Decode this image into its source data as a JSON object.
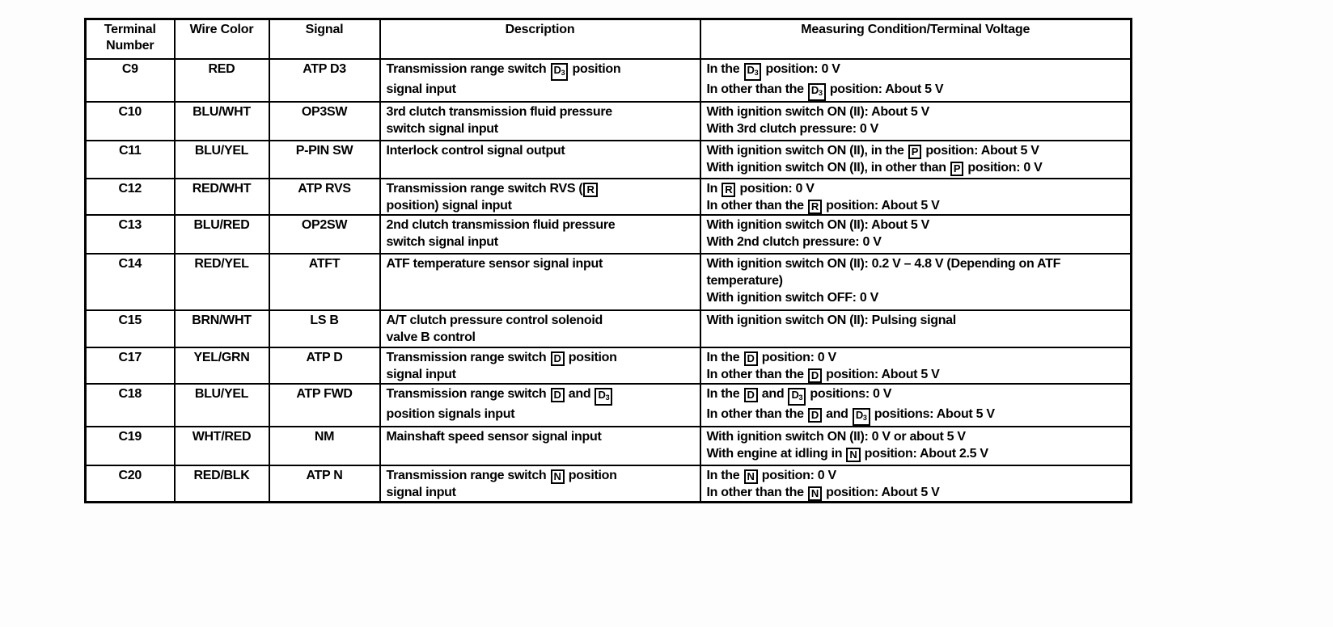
{
  "colors": {
    "page_background": "#fdfdfd",
    "table_background": "#ffffff",
    "border": "#000000",
    "text": "#000000"
  },
  "table": {
    "columns": [
      {
        "key": "terminal",
        "label": "Terminal Number"
      },
      {
        "key": "wire",
        "label": "Wire Color"
      },
      {
        "key": "signal",
        "label": "Signal"
      },
      {
        "key": "description",
        "label": "Description"
      },
      {
        "key": "voltage",
        "label": "Measuring Condition/Terminal Voltage"
      }
    ],
    "rows": [
      {
        "terminal": "C9",
        "wire": "RED",
        "signal": "ATP D3",
        "description": [
          "Transmission range switch [D3] position",
          "signal input"
        ],
        "voltage": [
          "In the [D3] position: 0 V",
          "In other than the [D3] position: About 5 V"
        ]
      },
      {
        "terminal": "C10",
        "wire": "BLU/WHT",
        "signal": "OP3SW",
        "description": [
          "3rd clutch transmission fluid pressure",
          "switch signal input"
        ],
        "voltage": [
          "With ignition switch ON (II): About 5 V",
          "With 3rd clutch pressure: 0 V"
        ]
      },
      {
        "terminal": "C11",
        "wire": "BLU/YEL",
        "signal": "P-PIN SW",
        "description": [
          "Interlock control signal output"
        ],
        "voltage": [
          "With ignition switch ON (II), in the [P] position: About 5 V",
          "With ignition switch ON (II), in other than [P] position: 0 V"
        ]
      },
      {
        "terminal": "C12",
        "wire": "RED/WHT",
        "signal": "ATP RVS",
        "description": [
          "Transmission range switch RVS ([R]",
          "position) signal input"
        ],
        "voltage": [
          "In [R] position: 0 V",
          "In other than the [R] position: About 5 V"
        ]
      },
      {
        "terminal": "C13",
        "wire": "BLU/RED",
        "signal": "OP2SW",
        "description": [
          "2nd clutch transmission fluid pressure",
          "switch signal input"
        ],
        "voltage": [
          "With ignition switch ON (II): About 5 V",
          "With 2nd clutch pressure: 0 V"
        ]
      },
      {
        "terminal": "C14",
        "wire": "RED/YEL",
        "signal": "ATFT",
        "description": [
          "ATF temperature sensor signal input"
        ],
        "voltage": [
          "With ignition switch ON (II): 0.2 V – 4.8 V (Depending on ATF",
          "temperature)",
          "With ignition switch OFF: 0 V"
        ]
      },
      {
        "terminal": "C15",
        "wire": "BRN/WHT",
        "signal": "LS B",
        "description": [
          "A/T clutch pressure control solenoid",
          "valve B control"
        ],
        "voltage": [
          "With ignition switch ON (II): Pulsing signal"
        ]
      },
      {
        "terminal": "C17",
        "wire": "YEL/GRN",
        "signal": "ATP D",
        "description": [
          "Transmission range switch [D] position",
          "signal input"
        ],
        "voltage": [
          "In the [D] position: 0 V",
          "In other than the [D] position: About 5 V"
        ]
      },
      {
        "terminal": "C18",
        "wire": "BLU/YEL",
        "signal": "ATP FWD",
        "description": [
          "Transmission range switch [D] and [D3]",
          "position signals input"
        ],
        "voltage": [
          "In the [D] and [D3] positions: 0 V",
          "In other than the [D] and [D3] positions: About 5 V"
        ]
      },
      {
        "terminal": "C19",
        "wire": "WHT/RED",
        "signal": "NM",
        "description": [
          "Mainshaft speed sensor signal input"
        ],
        "voltage": [
          "With ignition switch ON (II): 0 V or about 5 V",
          "With engine at idling in [N] position: About 2.5 V"
        ]
      },
      {
        "terminal": "C20",
        "wire": "RED/BLK",
        "signal": "ATP N",
        "description": [
          "Transmission range switch [N] position",
          "signal input"
        ],
        "voltage": [
          "In the [N] position: 0 V",
          "In other than the [N] position: About 5 V"
        ]
      }
    ]
  }
}
